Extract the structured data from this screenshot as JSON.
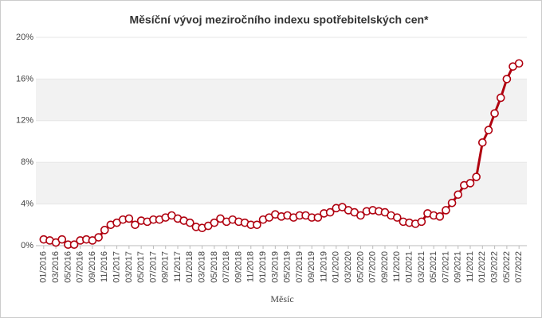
{
  "chart_data": {
    "type": "line",
    "title": "Měsíční vývoj meziročního indexu spotřebitelských cen*",
    "x_label": "Měsíc",
    "categories": [
      "01/2016",
      null,
      "03/2016",
      null,
      "05/2016",
      null,
      "07/2016",
      null,
      "09/2016",
      null,
      "11/2016",
      null,
      "01/2017",
      null,
      "03/2017",
      null,
      "05/2017",
      null,
      "07/2017",
      null,
      "09/2017",
      null,
      "11/2017",
      null,
      "01/2018",
      null,
      "03/2018",
      null,
      "05/2018",
      null,
      "07/2018",
      null,
      "09/2018",
      null,
      "11/2018",
      null,
      "01/2019",
      null,
      "03/2019",
      null,
      "05/2019",
      null,
      "07/2019",
      null,
      "09/2019",
      null,
      "11/2019",
      null,
      "01/2020",
      null,
      "03/2020",
      null,
      "05/2020",
      null,
      "07/2020",
      null,
      "09/2020",
      null,
      "11/2020",
      null,
      "01/2021",
      null,
      "03/2021",
      null,
      "05/2021",
      null,
      "07/2021",
      null,
      "09/2021",
      null,
      "11/2021",
      null,
      "01/2022",
      null,
      "03/2022",
      null,
      "05/2022",
      null,
      "07/2022"
    ],
    "values": [
      0.6,
      0.5,
      0.3,
      0.6,
      0.1,
      0.1,
      0.5,
      0.6,
      0.5,
      0.8,
      1.5,
      2.0,
      2.2,
      2.5,
      2.6,
      2.0,
      2.4,
      2.3,
      2.5,
      2.5,
      2.7,
      2.9,
      2.6,
      2.4,
      2.2,
      1.8,
      1.7,
      1.9,
      2.2,
      2.6,
      2.3,
      2.5,
      2.3,
      2.2,
      2.0,
      2.0,
      2.5,
      2.7,
      3.0,
      2.8,
      2.9,
      2.7,
      2.9,
      2.9,
      2.7,
      2.7,
      3.1,
      3.2,
      3.6,
      3.7,
      3.4,
      3.2,
      2.9,
      3.3,
      3.4,
      3.3,
      3.2,
      2.9,
      2.7,
      2.3,
      2.2,
      2.1,
      2.3,
      3.1,
      2.9,
      2.8,
      3.4,
      4.1,
      4.9,
      5.8,
      6.0,
      6.6,
      9.9,
      11.1,
      12.7,
      14.2,
      16.0,
      17.2,
      17.5
    ],
    "color": "#b0000f",
    "ylim": [
      0,
      20
    ],
    "yticks": [
      {
        "value": 0,
        "label": "0%"
      },
      {
        "value": 4,
        "label": "4%"
      },
      {
        "value": 8,
        "label": "8%"
      },
      {
        "value": 12,
        "label": "12%"
      },
      {
        "value": 16,
        "label": "16%"
      },
      {
        "value": 20,
        "label": "20%"
      }
    ],
    "banded_grid": true
  }
}
